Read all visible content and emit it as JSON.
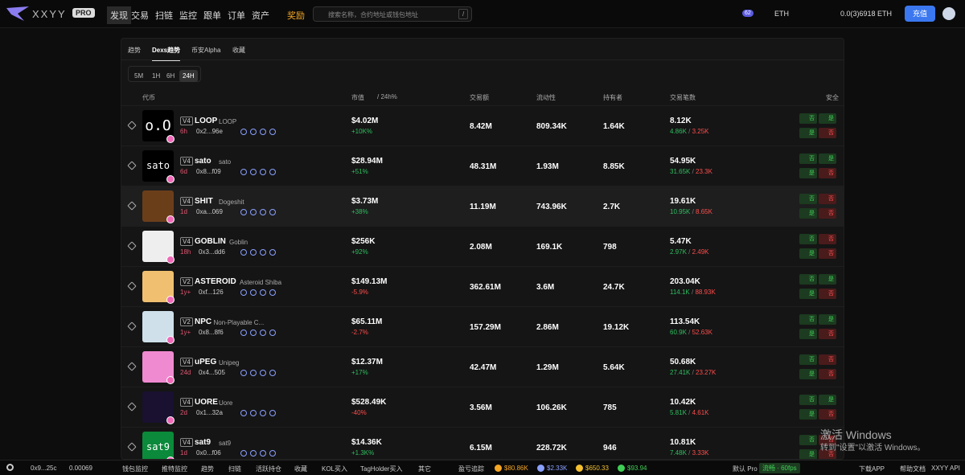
{
  "nav": {
    "logo": "XXYY",
    "pro": "PRO",
    "links": [
      "发现",
      "交易",
      "扫链",
      "监控",
      "跟单",
      "订单",
      "资产",
      "奖励"
    ],
    "search_placeholder": "搜索名称，合约地址或钱包地址",
    "search_key": "/",
    "notif_count": "62",
    "chain": "ETH",
    "balance": "0.0(3)6918 ETH",
    "deposit": "充值"
  },
  "tabs": [
    "趋势",
    "Dexs趋势",
    "币安Alpha",
    "收藏"
  ],
  "timeframes": [
    "5M",
    "1H",
    "6H",
    "24H"
  ],
  "columns": {
    "token": "代币",
    "mcap": "市值",
    "change": "/ 24h%",
    "volume": "交易额",
    "liquidity": "流动性",
    "holders": "持有者",
    "txns": "交易笔数",
    "security": "安全"
  },
  "rows": [
    {
      "icon_text": "o.O",
      "version": "V4",
      "symbol": "LOOP",
      "name": "LOOP",
      "age": "6h",
      "address": "0x2...96e",
      "mcap": "$4.02M",
      "change": "+10K%",
      "volume": "8.42M",
      "liquidity": "809.34K",
      "holders": "1.64K",
      "txns": "8.12K",
      "buys": "4.86K",
      "sells": "3.25K",
      "security": [
        {
          "label": "否",
          "ok": true
        },
        {
          "label": "是",
          "ok": true
        },
        {
          "label": "是",
          "ok": true
        },
        {
          "label": "否",
          "ok": false
        }
      ]
    },
    {
      "icon_text": "sato",
      "version": "V4",
      "symbol": "sato",
      "name": "sato",
      "age": "6d",
      "address": "0x8...f09",
      "mcap": "$28.94M",
      "change": "+51%",
      "volume": "48.31M",
      "liquidity": "1.93M",
      "holders": "8.85K",
      "txns": "54.95K",
      "buys": "31.65K",
      "sells": "23.3K",
      "security": [
        {
          "label": "否",
          "ok": true
        },
        {
          "label": "是",
          "ok": true
        },
        {
          "label": "是",
          "ok": true
        },
        {
          "label": "否",
          "ok": false
        }
      ]
    },
    {
      "version": "V4",
      "symbol": "SHIT",
      "name": "Dogeshit",
      "age": "1d",
      "address": "0xa...069",
      "mcap": "$3.73M",
      "change": "+38%",
      "volume": "11.19M",
      "liquidity": "743.96K",
      "holders": "2.7K",
      "txns": "19.61K",
      "buys": "10.95K",
      "sells": "8.65K",
      "security": [
        {
          "label": "否",
          "ok": true
        },
        {
          "label": "否",
          "ok": false
        },
        {
          "label": "是",
          "ok": true
        },
        {
          "label": "否",
          "ok": false
        }
      ]
    },
    {
      "version": "V4",
      "symbol": "GOBLIN",
      "name": "Goblin",
      "age": "18h",
      "address": "0x3...dd6",
      "mcap": "$256K",
      "change": "+92%",
      "volume": "2.08M",
      "liquidity": "169.1K",
      "holders": "798",
      "txns": "5.47K",
      "buys": "2.97K",
      "sells": "2.49K",
      "security": [
        {
          "label": "否",
          "ok": true
        },
        {
          "label": "否",
          "ok": false
        },
        {
          "label": "是",
          "ok": true
        },
        {
          "label": "否",
          "ok": false
        }
      ]
    },
    {
      "version": "V2",
      "symbol": "ASTEROID",
      "name": "Asteroid Shiba",
      "age": "1y+",
      "address": "0xf...126",
      "mcap": "$149.13M",
      "change": "-5.9%",
      "volume": "362.61M",
      "liquidity": "3.6M",
      "holders": "24.7K",
      "txns": "203.04K",
      "buys": "114.1K",
      "sells": "88.93K",
      "security": [
        {
          "label": "否",
          "ok": true
        },
        {
          "label": "是",
          "ok": true
        },
        {
          "label": "是",
          "ok": true
        },
        {
          "label": "否",
          "ok": false
        }
      ]
    },
    {
      "version": "V2",
      "symbol": "NPC",
      "name": "Non-Playable C...",
      "age": "1y+",
      "address": "0x8...8f6",
      "mcap": "$65.11M",
      "change": "-2.7%",
      "volume": "157.29M",
      "liquidity": "2.86M",
      "holders": "19.12K",
      "txns": "113.54K",
      "buys": "60.9K",
      "sells": "52.63K",
      "security": [
        {
          "label": "否",
          "ok": true
        },
        {
          "label": "是",
          "ok": true
        },
        {
          "label": "是",
          "ok": true
        },
        {
          "label": "否",
          "ok": false
        }
      ]
    },
    {
      "version": "V4",
      "symbol": "uPEG",
      "name": "Unipeg",
      "age": "24d",
      "address": "0x4...505",
      "mcap": "$12.37M",
      "change": "+17%",
      "volume": "42.47M",
      "liquidity": "1.29M",
      "holders": "5.64K",
      "txns": "50.68K",
      "buys": "27.41K",
      "sells": "23.27K",
      "security": [
        {
          "label": "否",
          "ok": true
        },
        {
          "label": "否",
          "ok": false
        },
        {
          "label": "是",
          "ok": true
        },
        {
          "label": "否",
          "ok": false
        }
      ]
    },
    {
      "version": "V4",
      "symbol": "UORE",
      "name": "Uore",
      "age": "2d",
      "address": "0x1...32a",
      "mcap": "$528.49K",
      "change": "-40%",
      "volume": "3.56M",
      "liquidity": "106.26K",
      "holders": "785",
      "txns": "10.42K",
      "buys": "5.81K",
      "sells": "4.61K",
      "security": [
        {
          "label": "否",
          "ok": true
        },
        {
          "label": "是",
          "ok": true
        },
        {
          "label": "是",
          "ok": true
        },
        {
          "label": "否",
          "ok": false
        }
      ]
    },
    {
      "icon_text": "sat9",
      "version": "V4",
      "symbol": "sat9",
      "name": "sat9",
      "age": "1d",
      "address": "0x0...f06",
      "mcap": "$14.36K",
      "change": "+1.3K%",
      "volume": "6.15M",
      "liquidity": "228.72K",
      "holders": "946",
      "txns": "10.81K",
      "buys": "7.48K",
      "sells": "3.33K",
      "security": [
        {
          "label": "否",
          "ok": true
        },
        {
          "label": "否",
          "ok": false
        },
        {
          "label": "是",
          "ok": true
        },
        {
          "label": "否",
          "ok": false
        }
      ]
    }
  ],
  "footer": {
    "wallet": "0x9...25c",
    "wallet_balance": "0.00069",
    "tools": [
      "钱包监控",
      "推特监控",
      "趋势",
      "扫链",
      "活跃持仓",
      "收藏",
      "KOL买入",
      "TagHolder买入",
      "其它",
      "盈亏追踪"
    ],
    "prices": [
      "$80.86K",
      "$2.33K",
      "$650.33",
      "$93.94"
    ],
    "mode": "默认 Pro",
    "fps": "流畅 · 60fps",
    "links": [
      "下载APP",
      "帮助文档",
      "XXYY API"
    ]
  },
  "watermark": {
    "title": "激活 Windows",
    "subtitle": "转到\"设置\"以激活 Windows。"
  }
}
